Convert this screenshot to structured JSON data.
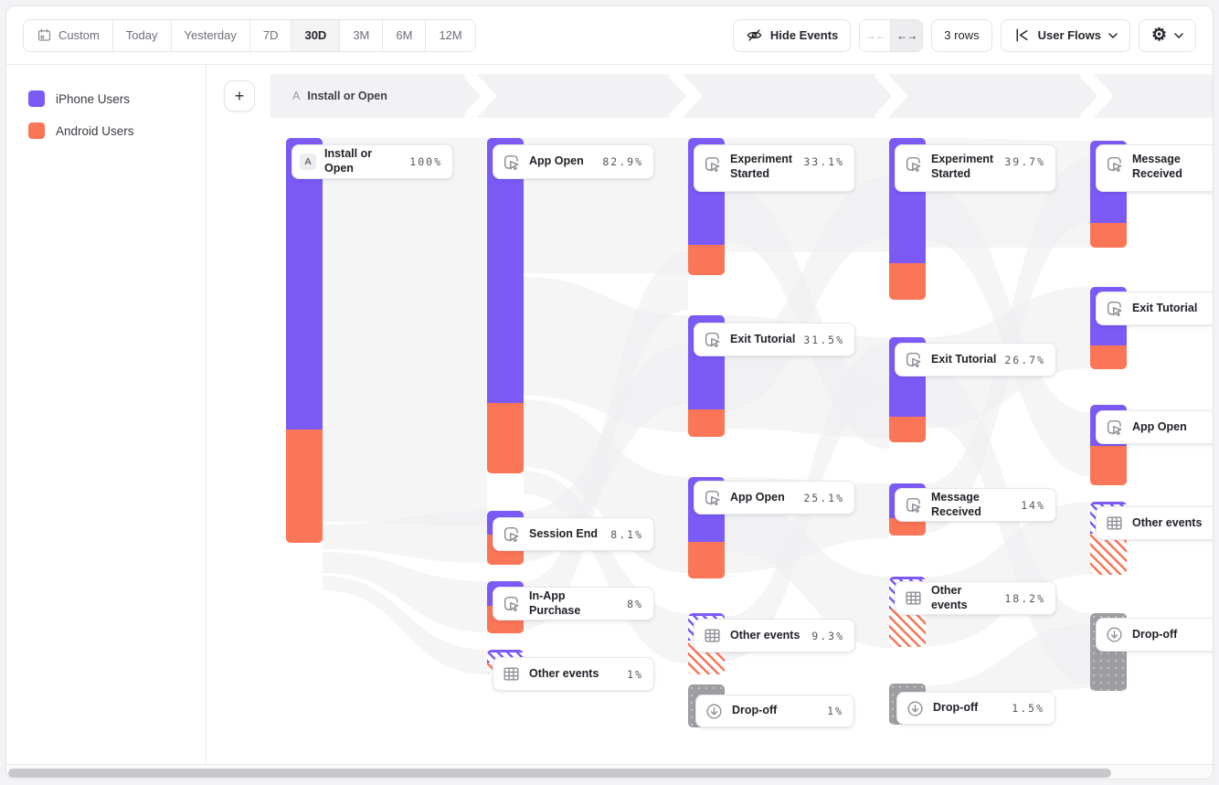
{
  "toolbar": {
    "date_ranges": [
      {
        "label": "Custom"
      },
      {
        "label": "Today"
      },
      {
        "label": "Yesterday"
      },
      {
        "label": "7D"
      },
      {
        "label": "30D"
      },
      {
        "label": "3M"
      },
      {
        "label": "6M"
      },
      {
        "label": "12M"
      }
    ],
    "selected_range": "30D",
    "hide_events_label": "Hide Events",
    "rows_label": "3 rows",
    "view_label": "User Flows",
    "collapse_glyph": "→←",
    "expand_glyph": "←→",
    "gear_glyph": "⚙",
    "add_label": "+"
  },
  "legend": {
    "items": [
      {
        "label": "iPhone Users",
        "color": "#7b5af5"
      },
      {
        "label": "Android Users",
        "color": "#fb7557"
      }
    ]
  },
  "header": {
    "step_letter": "A",
    "step_title": "Install or Open"
  },
  "flow": {
    "columns": [
      {
        "nodes": [
          {
            "badge": "A",
            "label": "Install or Open",
            "pct": "100%"
          }
        ]
      },
      {
        "nodes": [
          {
            "icon": "cursor-click",
            "label": "App Open",
            "pct": "82.9%"
          },
          {
            "icon": "cursor-click",
            "label": "Session End",
            "pct": "8.1%"
          },
          {
            "icon": "cursor-click",
            "label": "In-App Purchase",
            "pct": "8%"
          },
          {
            "icon": "grid",
            "label": "Other events",
            "pct": "1%"
          }
        ]
      },
      {
        "nodes": [
          {
            "icon": "cursor-click",
            "label": "Experiment Started",
            "pct": "33.1%"
          },
          {
            "icon": "cursor-click",
            "label": "Exit Tutorial",
            "pct": "31.5%"
          },
          {
            "icon": "cursor-click",
            "label": "App Open",
            "pct": "25.1%"
          },
          {
            "icon": "grid",
            "label": "Other events",
            "pct": "9.3%"
          },
          {
            "icon": "dropoff",
            "label": "Drop-off",
            "pct": "1%"
          }
        ]
      },
      {
        "nodes": [
          {
            "icon": "cursor-click",
            "label": "Experiment Started",
            "pct": "39.7%"
          },
          {
            "icon": "cursor-click",
            "label": "Exit Tutorial",
            "pct": "26.7%"
          },
          {
            "icon": "cursor-click",
            "label": "Message Received",
            "pct": "14%"
          },
          {
            "icon": "grid",
            "label": "Other events",
            "pct": "18.2%"
          },
          {
            "icon": "dropoff",
            "label": "Drop-off",
            "pct": "1.5%"
          }
        ]
      },
      {
        "nodes": [
          {
            "icon": "cursor-click",
            "label": "Message Received",
            "pct": ""
          },
          {
            "icon": "cursor-click",
            "label": "Exit Tutorial",
            "pct": ""
          },
          {
            "icon": "cursor-click",
            "label": "App Open",
            "pct": ""
          },
          {
            "icon": "grid",
            "label": "Other events",
            "pct": ""
          },
          {
            "icon": "dropoff",
            "label": "Drop-off",
            "pct": ""
          }
        ]
      }
    ]
  },
  "colors": {
    "iphone": "#7b5af5",
    "android": "#fb7557",
    "dropoff": "#9d9da2",
    "band": "#f2f2f4"
  }
}
